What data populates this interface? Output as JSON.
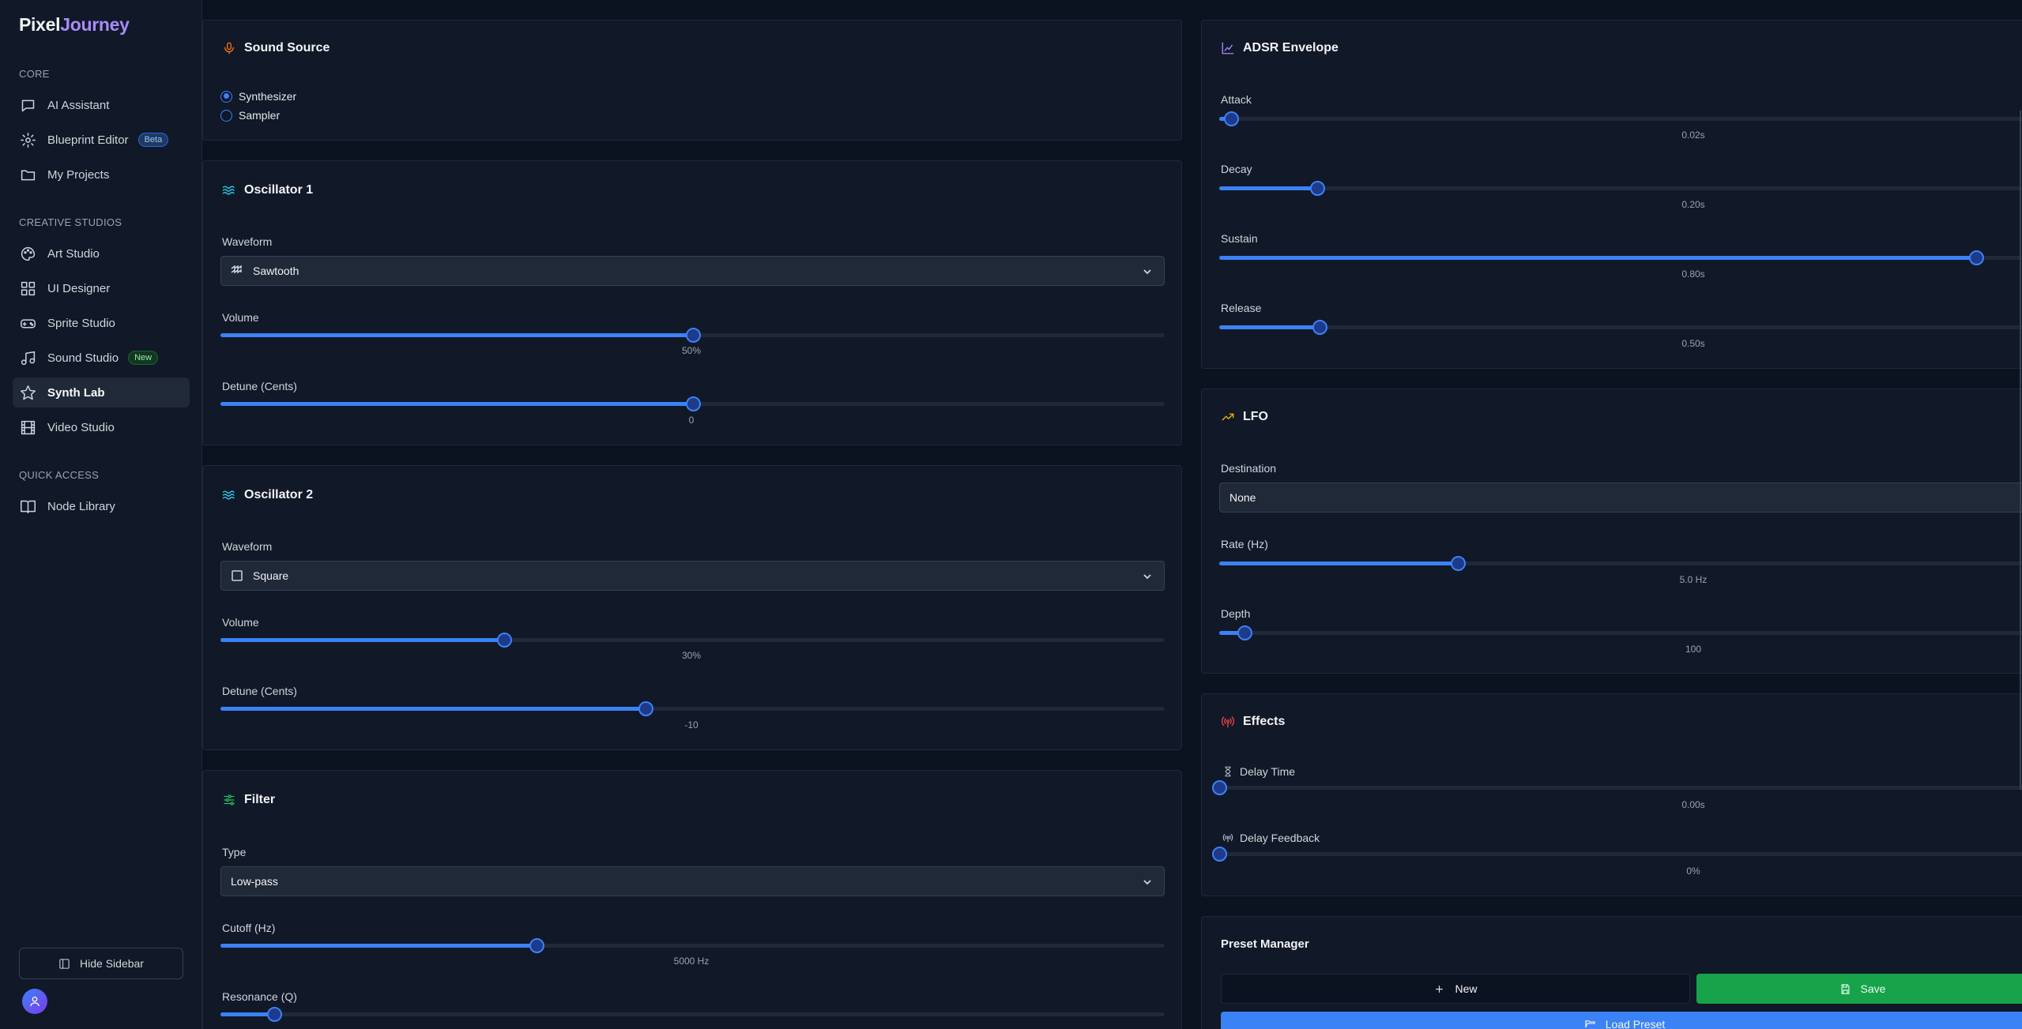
{
  "app": {
    "logo_part1": "Pixel",
    "logo_part2": "Journey"
  },
  "sidebar": {
    "sections": [
      "CORE",
      "CREATIVE STUDIOS",
      "QUICK ACCESS"
    ],
    "core_items": [
      {
        "label": "AI Assistant",
        "icon": "chat-icon"
      },
      {
        "label": "Blueprint Editor",
        "icon": "gear-icon",
        "badge": "Beta"
      },
      {
        "label": "My Projects",
        "icon": "folder-icon"
      }
    ],
    "creative_items": [
      {
        "label": "Art Studio",
        "icon": "palette-icon"
      },
      {
        "label": "UI Designer",
        "icon": "grid-icon"
      },
      {
        "label": "Sprite Studio",
        "icon": "gamepad-icon"
      },
      {
        "label": "Sound Studio",
        "icon": "music-icon",
        "badge": "New"
      },
      {
        "label": "Synth Lab",
        "icon": "star-icon",
        "active": true
      },
      {
        "label": "Video Studio",
        "icon": "film-icon"
      }
    ],
    "quick_items": [
      {
        "label": "Node Library",
        "icon": "book-icon"
      }
    ],
    "hide_label": "Hide Sidebar"
  },
  "sound_source": {
    "title": "Sound Source",
    "options": [
      "Synthesizer",
      "Sampler"
    ],
    "selected": "Synthesizer"
  },
  "osc1": {
    "title": "Oscillator 1",
    "waveform_label": "Waveform",
    "waveform": "Sawtooth",
    "volume_label": "Volume",
    "volume_value": "50%",
    "volume_frac": 0.5,
    "detune_label": "Detune (Cents)",
    "detune_value": "0",
    "detune_frac": 0.5
  },
  "osc2": {
    "title": "Oscillator 2",
    "waveform_label": "Waveform",
    "waveform": "Square",
    "volume_label": "Volume",
    "volume_value": "30%",
    "volume_frac": 0.3,
    "detune_label": "Detune (Cents)",
    "detune_value": "-10",
    "detune_frac": 0.45
  },
  "filter": {
    "title": "Filter",
    "type_label": "Type",
    "type": "Low-pass",
    "cutoff_label": "Cutoff (Hz)",
    "cutoff_value": "5000 Hz",
    "cutoff_frac": 0.335,
    "resonance_label": "Resonance (Q)",
    "resonance_frac": 0.057
  },
  "adsr": {
    "title": "ADSR Envelope",
    "attack_label": "Attack",
    "attack_value": "0.02s",
    "attack_frac": 0.015,
    "decay_label": "Decay",
    "decay_value": "0.20s",
    "decay_frac": 0.12,
    "sustain_label": "Sustain",
    "sustain_value": "0.80s",
    "sustain_frac": 0.93,
    "release_label": "Release",
    "release_value": "0.50s",
    "release_frac": 0.123
  },
  "lfo": {
    "title": "LFO",
    "destination_label": "Destination",
    "destination": "None",
    "rate_label": "Rate (Hz)",
    "rate_value": "5.0 Hz",
    "rate_frac": 0.293,
    "depth_label": "Depth",
    "depth_value": "100",
    "depth_frac": 0.031
  },
  "effects": {
    "title": "Effects",
    "delay_time_label": "Delay Time",
    "delay_time_value": "0.00s",
    "delay_time_frac": 0.0,
    "delay_feedback_label": "Delay Feedback",
    "delay_feedback_value": "0%",
    "delay_feedback_frac": 0.0
  },
  "preset": {
    "title": "Preset Manager",
    "new_label": "New",
    "save_label": "Save",
    "load_label": "Load Preset"
  },
  "colors": {
    "accent": "#3b82f6",
    "save_green": "#16a34a",
    "logo_purple": "#a78bfa"
  }
}
